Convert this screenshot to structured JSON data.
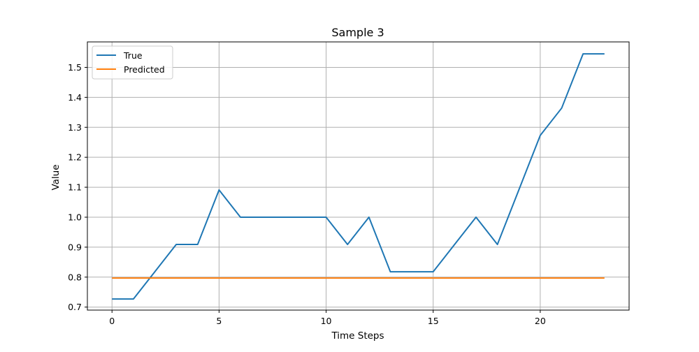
{
  "chart_data": {
    "type": "line",
    "title": "Sample 3",
    "xlabel": "Time Steps",
    "ylabel": "Value",
    "xlim": [
      -1.15,
      24.15
    ],
    "ylim": [
      0.69,
      1.585
    ],
    "x_ticks": [
      0,
      5,
      10,
      15,
      20
    ],
    "x_tick_labels": [
      "0",
      "5",
      "10",
      "15",
      "20"
    ],
    "y_ticks": [
      0.7,
      0.8,
      0.9,
      1.0,
      1.1,
      1.2,
      1.3,
      1.4,
      1.5
    ],
    "y_tick_labels": [
      "0.7",
      "0.8",
      "0.9",
      "1.0",
      "1.1",
      "1.2",
      "1.3",
      "1.4",
      "1.5"
    ],
    "grid": true,
    "legend_position": "top-left",
    "x": [
      0,
      1,
      2,
      3,
      4,
      5,
      6,
      7,
      8,
      9,
      10,
      11,
      12,
      13,
      14,
      15,
      16,
      17,
      18,
      19,
      20,
      21,
      22,
      23
    ],
    "series": [
      {
        "name": "True",
        "color": "#1f77b4",
        "values": [
          0.727,
          0.727,
          0.818,
          0.909,
          0.909,
          1.091,
          1.0,
          1.0,
          1.0,
          1.0,
          1.0,
          0.909,
          1.0,
          0.818,
          0.818,
          0.818,
          0.909,
          1.0,
          0.909,
          1.091,
          1.273,
          1.364,
          1.545,
          1.545
        ]
      },
      {
        "name": "Predicted",
        "color": "#ff7f0e",
        "values": [
          0.797,
          0.797,
          0.797,
          0.797,
          0.797,
          0.797,
          0.797,
          0.797,
          0.797,
          0.797,
          0.797,
          0.797,
          0.797,
          0.797,
          0.797,
          0.797,
          0.797,
          0.797,
          0.797,
          0.797,
          0.797,
          0.797,
          0.797,
          0.797
        ]
      }
    ]
  }
}
